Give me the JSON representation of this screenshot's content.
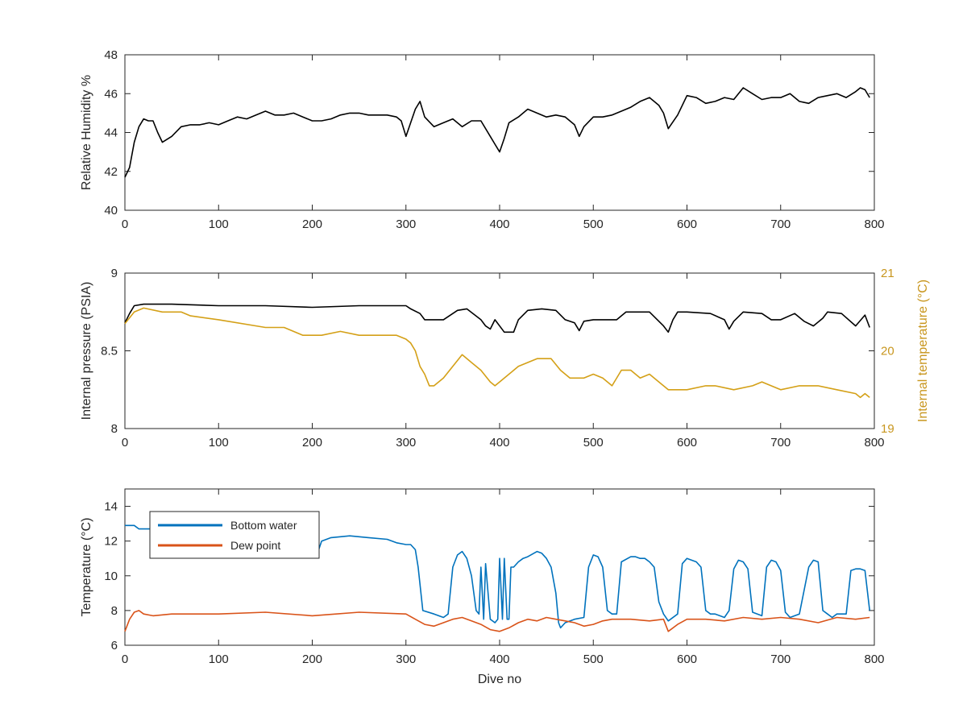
{
  "chart_data": [
    {
      "type": "line",
      "xlabel": "",
      "ylabel": "Relative Humidity %",
      "xlim": [
        0,
        800
      ],
      "ylim": [
        40,
        48
      ],
      "xticks": [
        "0",
        "100",
        "200",
        "300",
        "400",
        "500",
        "600",
        "700",
        "800"
      ],
      "yticks": [
        "40",
        "42",
        "44",
        "46",
        "48"
      ],
      "grid": false,
      "series": [
        {
          "color": "#000000",
          "x": [
            0,
            5,
            10,
            15,
            20,
            25,
            30,
            35,
            40,
            50,
            60,
            70,
            80,
            90,
            100,
            110,
            120,
            130,
            140,
            150,
            160,
            170,
            180,
            190,
            200,
            210,
            220,
            230,
            240,
            250,
            260,
            270,
            280,
            290,
            295,
            300,
            305,
            310,
            315,
            320,
            330,
            340,
            350,
            360,
            370,
            380,
            390,
            395,
            400,
            405,
            410,
            420,
            430,
            440,
            450,
            460,
            470,
            480,
            485,
            490,
            500,
            510,
            520,
            530,
            540,
            550,
            560,
            570,
            575,
            580,
            590,
            600,
            610,
            620,
            630,
            640,
            650,
            660,
            670,
            680,
            690,
            700,
            710,
            720,
            730,
            740,
            750,
            760,
            770,
            780,
            785,
            790,
            795
          ],
          "y": [
            41.7,
            42.2,
            43.5,
            44.3,
            44.7,
            44.6,
            44.6,
            44.0,
            43.5,
            43.8,
            44.3,
            44.4,
            44.4,
            44.5,
            44.4,
            44.6,
            44.8,
            44.7,
            44.9,
            45.1,
            44.9,
            44.9,
            45.0,
            44.8,
            44.6,
            44.6,
            44.7,
            44.9,
            45.0,
            45.0,
            44.9,
            44.9,
            44.9,
            44.8,
            44.6,
            43.8,
            44.5,
            45.2,
            45.6,
            44.8,
            44.3,
            44.5,
            44.7,
            44.3,
            44.6,
            44.6,
            43.8,
            43.4,
            43.0,
            43.7,
            44.5,
            44.8,
            45.2,
            45.0,
            44.8,
            44.9,
            44.8,
            44.4,
            43.8,
            44.3,
            44.8,
            44.8,
            44.9,
            45.1,
            45.3,
            45.6,
            45.8,
            45.4,
            45.0,
            44.2,
            44.9,
            45.9,
            45.8,
            45.5,
            45.6,
            45.8,
            45.7,
            46.3,
            46.0,
            45.7,
            45.8,
            45.8,
            46.0,
            45.6,
            45.5,
            45.8,
            45.9,
            46.0,
            45.8,
            46.1,
            46.3,
            46.2,
            45.8
          ]
        }
      ]
    },
    {
      "type": "line",
      "xlabel": "",
      "ylabel": "Internal pressure (PSIA)",
      "ylabel_right": "Internal temperature (°C)",
      "xlim": [
        0,
        800
      ],
      "ylim": [
        8,
        9
      ],
      "ylim_right": [
        19,
        21
      ],
      "xticks": [
        "0",
        "100",
        "200",
        "300",
        "400",
        "500",
        "600",
        "700",
        "800"
      ],
      "yticks": [
        "8",
        "8.5",
        "9"
      ],
      "yticks_right": [
        "19",
        "20",
        "21"
      ],
      "grid": false,
      "series": [
        {
          "axis": "left",
          "color": "#000000",
          "x": [
            0,
            5,
            10,
            20,
            50,
            100,
            150,
            200,
            250,
            300,
            305,
            315,
            320,
            340,
            355,
            365,
            380,
            385,
            390,
            395,
            405,
            415,
            420,
            430,
            445,
            460,
            470,
            480,
            485,
            490,
            500,
            525,
            535,
            560,
            570,
            575,
            580,
            585,
            590,
            600,
            625,
            640,
            645,
            650,
            660,
            680,
            690,
            700,
            715,
            725,
            735,
            745,
            750,
            765,
            780,
            790,
            795
          ],
          "y": [
            8.68,
            8.74,
            8.79,
            8.8,
            8.8,
            8.79,
            8.79,
            8.78,
            8.79,
            8.79,
            8.77,
            8.74,
            8.7,
            8.7,
            8.76,
            8.77,
            8.7,
            8.66,
            8.64,
            8.7,
            8.62,
            8.62,
            8.7,
            8.76,
            8.77,
            8.76,
            8.7,
            8.68,
            8.63,
            8.69,
            8.7,
            8.7,
            8.75,
            8.75,
            8.69,
            8.66,
            8.62,
            8.7,
            8.75,
            8.75,
            8.74,
            8.7,
            8.64,
            8.69,
            8.75,
            8.74,
            8.7,
            8.7,
            8.74,
            8.69,
            8.66,
            8.71,
            8.75,
            8.74,
            8.66,
            8.73,
            8.65
          ]
        },
        {
          "axis": "right",
          "color": "#D4A017",
          "x": [
            0,
            10,
            20,
            40,
            60,
            70,
            100,
            150,
            170,
            190,
            200,
            210,
            230,
            250,
            270,
            290,
            300,
            305,
            310,
            315,
            320,
            325,
            330,
            340,
            350,
            360,
            370,
            380,
            390,
            395,
            400,
            410,
            420,
            430,
            440,
            450,
            455,
            465,
            475,
            490,
            500,
            510,
            520,
            530,
            540,
            550,
            560,
            570,
            580,
            600,
            620,
            630,
            650,
            670,
            680,
            700,
            720,
            740,
            760,
            780,
            785,
            790,
            795
          ],
          "y": [
            20.35,
            20.5,
            20.55,
            20.5,
            20.5,
            20.45,
            20.4,
            20.3,
            20.3,
            20.2,
            20.2,
            20.2,
            20.25,
            20.2,
            20.2,
            20.2,
            20.15,
            20.1,
            20.0,
            19.8,
            19.7,
            19.55,
            19.55,
            19.65,
            19.8,
            19.95,
            19.85,
            19.75,
            19.6,
            19.55,
            19.6,
            19.7,
            19.8,
            19.85,
            19.9,
            19.9,
            19.9,
            19.75,
            19.65,
            19.65,
            19.7,
            19.65,
            19.55,
            19.75,
            19.75,
            19.65,
            19.7,
            19.6,
            19.5,
            19.5,
            19.55,
            19.55,
            19.5,
            19.55,
            19.6,
            19.5,
            19.55,
            19.55,
            19.5,
            19.45,
            19.4,
            19.45,
            19.4
          ]
        }
      ]
    },
    {
      "type": "line",
      "xlabel": "Dive no",
      "ylabel": "Temperature (°C)",
      "xlim": [
        0,
        800
      ],
      "ylim": [
        6,
        15
      ],
      "xticks": [
        "0",
        "100",
        "200",
        "300",
        "400",
        "500",
        "600",
        "700",
        "800"
      ],
      "yticks": [
        "6",
        "8",
        "10",
        "12",
        "14"
      ],
      "grid": false,
      "legend_position": "top-left",
      "series": [
        {
          "name": "Bottom water",
          "color": "#0072BD",
          "x": [
            0,
            10,
            15,
            20,
            30,
            35,
            60,
            100,
            150,
            190,
            200,
            205,
            210,
            220,
            240,
            260,
            280,
            290,
            300,
            305,
            310,
            313,
            318,
            330,
            340,
            345,
            350,
            355,
            360,
            365,
            370,
            375,
            378,
            380,
            383,
            385,
            390,
            395,
            398,
            400,
            403,
            405,
            408,
            410,
            412,
            415,
            420,
            425,
            430,
            440,
            445,
            450,
            455,
            460,
            463,
            465,
            470,
            480,
            490,
            495,
            500,
            505,
            510,
            515,
            520,
            525,
            530,
            540,
            545,
            550,
            555,
            560,
            565,
            570,
            575,
            580,
            590,
            595,
            600,
            605,
            610,
            615,
            620,
            625,
            630,
            640,
            645,
            650,
            655,
            660,
            665,
            670,
            680,
            685,
            690,
            695,
            700,
            705,
            710,
            720,
            730,
            735,
            740,
            745,
            750,
            755,
            760,
            770,
            775,
            780,
            785,
            790,
            795
          ],
          "y": [
            12.9,
            12.9,
            12.7,
            12.7,
            12.7,
            12.0,
            11.9,
            12.0,
            11.9,
            11.8,
            11.8,
            11.2,
            12.0,
            12.2,
            12.3,
            12.2,
            12.1,
            11.9,
            11.8,
            11.8,
            11.5,
            10.5,
            8.0,
            7.8,
            7.6,
            7.8,
            10.5,
            11.2,
            11.4,
            11.0,
            10.0,
            8.0,
            7.8,
            10.5,
            7.5,
            10.7,
            7.5,
            7.3,
            7.5,
            11.0,
            7.5,
            11.0,
            7.5,
            7.5,
            10.5,
            10.5,
            10.8,
            11.0,
            11.1,
            11.4,
            11.3,
            11.0,
            10.5,
            9.0,
            7.3,
            7.0,
            7.3,
            7.5,
            7.6,
            10.5,
            11.2,
            11.1,
            10.5,
            8.0,
            7.8,
            7.8,
            10.8,
            11.1,
            11.1,
            11.0,
            11.0,
            10.8,
            10.5,
            8.5,
            7.8,
            7.4,
            7.8,
            10.7,
            11.0,
            10.9,
            10.8,
            10.5,
            8.0,
            7.8,
            7.8,
            7.6,
            8.0,
            10.4,
            10.9,
            10.8,
            10.4,
            7.9,
            7.7,
            10.5,
            10.9,
            10.8,
            10.3,
            7.9,
            7.6,
            7.8,
            10.5,
            10.9,
            10.8,
            8.0,
            7.8,
            7.6,
            7.8,
            7.8,
            10.3,
            10.4,
            10.4,
            10.3,
            8.0
          ]
        },
        {
          "name": "Dew point",
          "color": "#D95319",
          "x": [
            0,
            5,
            10,
            15,
            20,
            30,
            50,
            100,
            150,
            200,
            250,
            300,
            310,
            320,
            330,
            340,
            350,
            360,
            370,
            380,
            390,
            400,
            410,
            420,
            430,
            440,
            450,
            460,
            470,
            480,
            490,
            500,
            510,
            520,
            540,
            560,
            575,
            580,
            590,
            600,
            620,
            640,
            660,
            680,
            700,
            720,
            740,
            760,
            780,
            795
          ],
          "y": [
            6.8,
            7.5,
            7.9,
            8.0,
            7.8,
            7.7,
            7.8,
            7.8,
            7.9,
            7.7,
            7.9,
            7.8,
            7.5,
            7.2,
            7.1,
            7.3,
            7.5,
            7.6,
            7.4,
            7.2,
            6.9,
            6.8,
            7.0,
            7.3,
            7.5,
            7.4,
            7.6,
            7.5,
            7.4,
            7.3,
            7.1,
            7.2,
            7.4,
            7.5,
            7.5,
            7.4,
            7.5,
            6.8,
            7.2,
            7.5,
            7.5,
            7.4,
            7.6,
            7.5,
            7.6,
            7.5,
            7.3,
            7.6,
            7.5,
            7.6
          ]
        }
      ]
    }
  ]
}
